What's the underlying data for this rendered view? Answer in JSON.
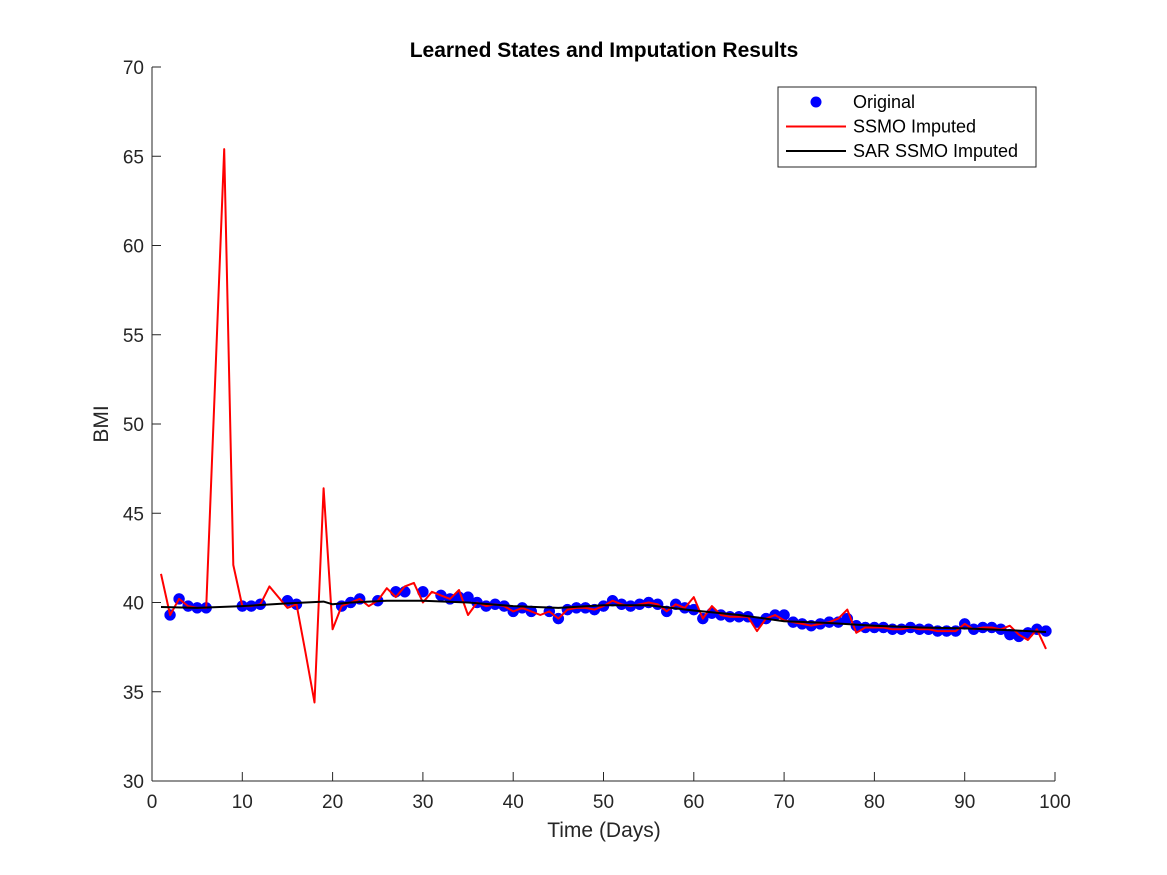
{
  "chart_data": {
    "type": "line",
    "title": "Learned States and Imputation Results",
    "xlabel": "Time (Days)",
    "ylabel": "BMI",
    "xlim": [
      0,
      100
    ],
    "ylim": [
      30,
      70
    ],
    "xticks": [
      0,
      10,
      20,
      30,
      40,
      50,
      60,
      70,
      80,
      90,
      100
    ],
    "yticks": [
      30,
      35,
      40,
      45,
      50,
      55,
      60,
      65,
      70
    ],
    "grid": false,
    "legend_position": "top-right",
    "series": [
      {
        "name": "Original",
        "kind": "scatter",
        "color": "#0000ff",
        "points": [
          [
            2,
            39.3
          ],
          [
            3,
            40.2
          ],
          [
            4,
            39.8
          ],
          [
            5,
            39.7
          ],
          [
            6,
            39.7
          ],
          [
            10,
            39.8
          ],
          [
            11,
            39.8
          ],
          [
            12,
            39.9
          ],
          [
            15,
            40.1
          ],
          [
            16,
            39.9
          ],
          [
            21,
            39.8
          ],
          [
            22,
            40.0
          ],
          [
            23,
            40.2
          ],
          [
            25,
            40.1
          ],
          [
            27,
            40.6
          ],
          [
            28,
            40.6
          ],
          [
            30,
            40.6
          ],
          [
            32,
            40.4
          ],
          [
            33,
            40.2
          ],
          [
            34,
            40.3
          ],
          [
            35,
            40.3
          ],
          [
            36,
            40.0
          ],
          [
            37,
            39.8
          ],
          [
            38,
            39.9
          ],
          [
            39,
            39.8
          ],
          [
            40,
            39.5
          ],
          [
            41,
            39.7
          ],
          [
            42,
            39.5
          ],
          [
            44,
            39.5
          ],
          [
            45,
            39.1
          ],
          [
            46,
            39.6
          ],
          [
            47,
            39.7
          ],
          [
            48,
            39.7
          ],
          [
            49,
            39.6
          ],
          [
            50,
            39.8
          ],
          [
            51,
            40.1
          ],
          [
            52,
            39.9
          ],
          [
            53,
            39.8
          ],
          [
            54,
            39.9
          ],
          [
            55,
            40.0
          ],
          [
            56,
            39.9
          ],
          [
            57,
            39.5
          ],
          [
            58,
            39.9
          ],
          [
            59,
            39.7
          ],
          [
            60,
            39.6
          ],
          [
            61,
            39.1
          ],
          [
            62,
            39.4
          ],
          [
            63,
            39.3
          ],
          [
            64,
            39.2
          ],
          [
            65,
            39.2
          ],
          [
            66,
            39.2
          ],
          [
            67,
            38.9
          ],
          [
            68,
            39.1
          ],
          [
            69,
            39.3
          ],
          [
            70,
            39.3
          ],
          [
            71,
            38.9
          ],
          [
            72,
            38.8
          ],
          [
            73,
            38.7
          ],
          [
            74,
            38.8
          ],
          [
            75,
            38.9
          ],
          [
            76,
            38.9
          ],
          [
            77,
            39.1
          ],
          [
            78,
            38.7
          ],
          [
            79,
            38.6
          ],
          [
            80,
            38.6
          ],
          [
            81,
            38.6
          ],
          [
            82,
            38.5
          ],
          [
            83,
            38.5
          ],
          [
            84,
            38.6
          ],
          [
            85,
            38.5
          ],
          [
            86,
            38.5
          ],
          [
            87,
            38.4
          ],
          [
            88,
            38.4
          ],
          [
            89,
            38.4
          ],
          [
            90,
            38.8
          ],
          [
            91,
            38.5
          ],
          [
            92,
            38.6
          ],
          [
            93,
            38.6
          ],
          [
            94,
            38.5
          ],
          [
            95,
            38.2
          ],
          [
            96,
            38.1
          ],
          [
            97,
            38.3
          ],
          [
            98,
            38.5
          ],
          [
            99,
            38.4
          ]
        ]
      },
      {
        "name": "SSMO Imputed",
        "kind": "line",
        "color": "#ff0000",
        "points": [
          [
            1,
            41.6
          ],
          [
            2,
            39.3
          ],
          [
            3,
            40.2
          ],
          [
            4,
            39.8
          ],
          [
            5,
            39.7
          ],
          [
            6,
            39.7
          ],
          [
            7,
            52.5
          ],
          [
            8,
            65.4
          ],
          [
            9,
            42.1
          ],
          [
            10,
            39.8
          ],
          [
            11,
            39.8
          ],
          [
            12,
            39.9
          ],
          [
            13,
            40.9
          ],
          [
            14,
            40.3
          ],
          [
            15,
            39.7
          ],
          [
            16,
            39.9
          ],
          [
            17,
            37.2
          ],
          [
            18,
            34.4
          ],
          [
            19,
            46.4
          ],
          [
            20,
            38.5
          ],
          [
            21,
            39.8
          ],
          [
            22,
            40.0
          ],
          [
            23,
            40.2
          ],
          [
            24,
            39.8
          ],
          [
            25,
            40.1
          ],
          [
            26,
            40.8
          ],
          [
            27,
            40.3
          ],
          [
            28,
            40.9
          ],
          [
            29,
            41.1
          ],
          [
            30,
            40.0
          ],
          [
            31,
            40.6
          ],
          [
            32,
            40.4
          ],
          [
            33,
            40.2
          ],
          [
            34,
            40.7
          ],
          [
            35,
            39.3
          ],
          [
            36,
            40.0
          ],
          [
            37,
            39.8
          ],
          [
            38,
            39.9
          ],
          [
            39,
            39.8
          ],
          [
            40,
            39.5
          ],
          [
            41,
            39.7
          ],
          [
            42,
            39.5
          ],
          [
            43,
            39.3
          ],
          [
            44,
            39.5
          ],
          [
            45,
            39.1
          ],
          [
            46,
            39.6
          ],
          [
            47,
            39.7
          ],
          [
            48,
            39.7
          ],
          [
            49,
            39.6
          ],
          [
            50,
            39.8
          ],
          [
            51,
            40.1
          ],
          [
            52,
            39.9
          ],
          [
            53,
            39.8
          ],
          [
            54,
            39.9
          ],
          [
            55,
            40.0
          ],
          [
            56,
            39.9
          ],
          [
            57,
            39.5
          ],
          [
            58,
            39.9
          ],
          [
            59,
            39.7
          ],
          [
            60,
            40.3
          ],
          [
            61,
            39.1
          ],
          [
            62,
            39.8
          ],
          [
            63,
            39.3
          ],
          [
            64,
            39.2
          ],
          [
            65,
            39.2
          ],
          [
            66,
            39.2
          ],
          [
            67,
            38.4
          ],
          [
            68,
            39.1
          ],
          [
            69,
            39.3
          ],
          [
            70,
            39.0
          ],
          [
            71,
            38.9
          ],
          [
            72,
            38.8
          ],
          [
            73,
            38.7
          ],
          [
            74,
            38.8
          ],
          [
            75,
            38.9
          ],
          [
            76,
            39.1
          ],
          [
            77,
            39.6
          ],
          [
            78,
            38.3
          ],
          [
            79,
            38.6
          ],
          [
            80,
            38.6
          ],
          [
            81,
            38.6
          ],
          [
            82,
            38.5
          ],
          [
            83,
            38.5
          ],
          [
            84,
            38.6
          ],
          [
            85,
            38.5
          ],
          [
            86,
            38.5
          ],
          [
            87,
            38.4
          ],
          [
            88,
            38.4
          ],
          [
            89,
            38.4
          ],
          [
            90,
            38.8
          ],
          [
            91,
            38.5
          ],
          [
            92,
            38.6
          ],
          [
            93,
            38.6
          ],
          [
            94,
            38.5
          ],
          [
            95,
            38.7
          ],
          [
            96,
            38.2
          ],
          [
            97,
            37.9
          ],
          [
            98,
            38.5
          ],
          [
            99,
            37.4
          ]
        ]
      },
      {
        "name": "SAR SSMO Imputed",
        "kind": "line",
        "color": "#000000",
        "points": [
          [
            1,
            39.75
          ],
          [
            5,
            39.7
          ],
          [
            10,
            39.8
          ],
          [
            15,
            39.95
          ],
          [
            19,
            40.05
          ],
          [
            20,
            39.9
          ],
          [
            22,
            40.0
          ],
          [
            26,
            40.1
          ],
          [
            30,
            40.1
          ],
          [
            35,
            40.0
          ],
          [
            40,
            39.8
          ],
          [
            45,
            39.7
          ],
          [
            50,
            39.85
          ],
          [
            55,
            39.85
          ],
          [
            60,
            39.55
          ],
          [
            65,
            39.3
          ],
          [
            70,
            38.95
          ],
          [
            75,
            38.85
          ],
          [
            80,
            38.7
          ],
          [
            85,
            38.6
          ],
          [
            90,
            38.55
          ],
          [
            95,
            38.45
          ],
          [
            99,
            38.35
          ]
        ]
      }
    ]
  }
}
